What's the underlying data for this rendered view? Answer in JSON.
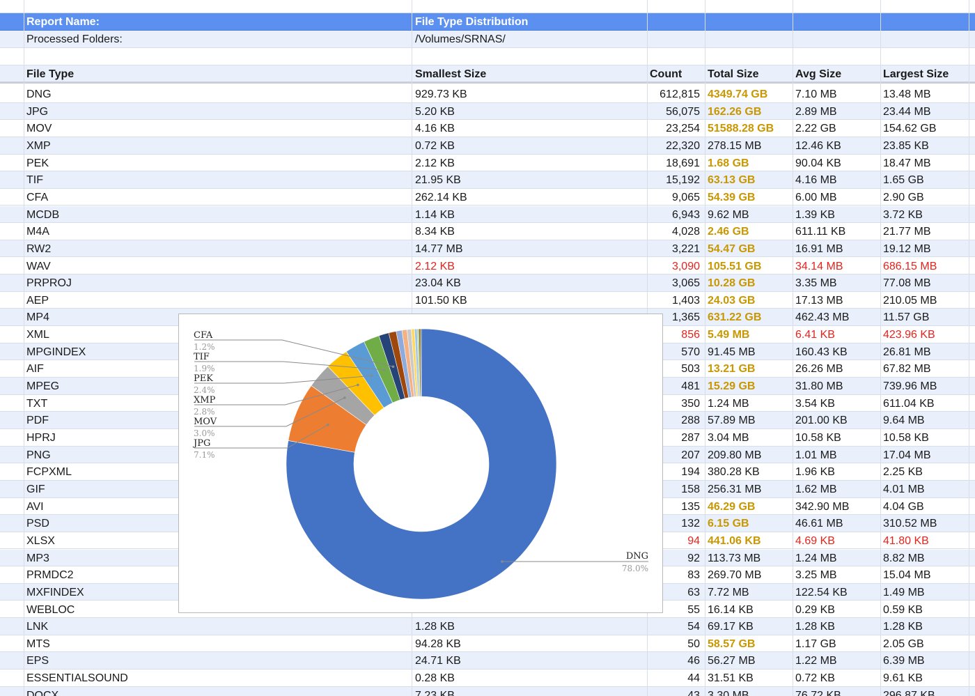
{
  "report": {
    "name_label": "Report Name:",
    "name_value": "File Type Distribution",
    "folders_label": "Processed Folders:",
    "folders_value": "/Volumes/SRNAS/"
  },
  "columns": [
    "File Type",
    "Smallest Size",
    "Count",
    "Total Size",
    "Avg Size",
    "Largest Size"
  ],
  "rows": [
    {
      "type": "DNG",
      "smallest": "929.73 KB",
      "count": "612,815",
      "total": "4349.74 GB",
      "avg": "7.10 MB",
      "largest": "13.48 MB",
      "style": "gold"
    },
    {
      "type": "JPG",
      "smallest": "5.20 KB",
      "count": "56,075",
      "total": "162.26 GB",
      "avg": "2.89 MB",
      "largest": "23.44 MB",
      "style": "gold"
    },
    {
      "type": "MOV",
      "smallest": "4.16 KB",
      "count": "23,254",
      "total": "51588.28 GB",
      "avg": "2.22 GB",
      "largest": "154.62 GB",
      "style": "gold"
    },
    {
      "type": "XMP",
      "smallest": "0.72 KB",
      "count": "22,320",
      "total": "278.15 MB",
      "avg": "12.46 KB",
      "largest": "23.85 KB",
      "style": ""
    },
    {
      "type": "PEK",
      "smallest": "2.12 KB",
      "count": "18,691",
      "total": "1.68 GB",
      "avg": "90.04 KB",
      "largest": "18.47 MB",
      "style": "gold"
    },
    {
      "type": "TIF",
      "smallest": "21.95 KB",
      "count": "15,192",
      "total": "63.13 GB",
      "avg": "4.16 MB",
      "largest": "1.65 GB",
      "style": "gold"
    },
    {
      "type": "CFA",
      "smallest": "262.14 KB",
      "count": "9,065",
      "total": "54.39 GB",
      "avg": "6.00 MB",
      "largest": "2.90 GB",
      "style": "gold"
    },
    {
      "type": "MCDB",
      "smallest": "1.14 KB",
      "count": "6,943",
      "total": "9.62 MB",
      "avg": "1.39 KB",
      "largest": "3.72 KB",
      "style": ""
    },
    {
      "type": "M4A",
      "smallest": "8.34 KB",
      "count": "4,028",
      "total": "2.46 GB",
      "avg": "611.11 KB",
      "largest": "21.77 MB",
      "style": "gold"
    },
    {
      "type": "RW2",
      "smallest": "14.77 MB",
      "count": "3,221",
      "total": "54.47 GB",
      "avg": "16.91 MB",
      "largest": "19.12 MB",
      "style": "gold"
    },
    {
      "type": "WAV",
      "smallest": "2.12 KB",
      "count": "3,090",
      "total": "105.51 GB",
      "avg": "34.14 MB",
      "largest": "686.15 MB",
      "style": "red"
    },
    {
      "type": "PRPROJ",
      "smallest": "23.04 KB",
      "count": "3,065",
      "total": "10.28 GB",
      "avg": "3.35 MB",
      "largest": "77.08 MB",
      "style": "gold"
    },
    {
      "type": "AEP",
      "smallest": "101.50 KB",
      "count": "1,403",
      "total": "24.03 GB",
      "avg": "17.13 MB",
      "largest": "210.05 MB",
      "style": "gold"
    },
    {
      "type": "MP4",
      "smallest": "",
      "count": "1,365",
      "total": "631.22 GB",
      "avg": "462.43 MB",
      "largest": "11.57 GB",
      "style": "gold"
    },
    {
      "type": "XML",
      "smallest": "",
      "count": "856",
      "total": "5.49 MB",
      "avg": "6.41 KB",
      "largest": "423.96 KB",
      "style": "red"
    },
    {
      "type": "MPGINDEX",
      "smallest": "",
      "count": "570",
      "total": "91.45 MB",
      "avg": "160.43 KB",
      "largest": "26.81 MB",
      "style": ""
    },
    {
      "type": "AIF",
      "smallest": "",
      "count": "503",
      "total": "13.21 GB",
      "avg": "26.26 MB",
      "largest": "67.82 MB",
      "style": "gold"
    },
    {
      "type": "MPEG",
      "smallest": "",
      "count": "481",
      "total": "15.29 GB",
      "avg": "31.80 MB",
      "largest": "739.96 MB",
      "style": "gold"
    },
    {
      "type": "TXT",
      "smallest": "",
      "count": "350",
      "total": "1.24 MB",
      "avg": "3.54 KB",
      "largest": "611.04 KB",
      "style": ""
    },
    {
      "type": "PDF",
      "smallest": "",
      "count": "288",
      "total": "57.89 MB",
      "avg": "201.00 KB",
      "largest": "9.64 MB",
      "style": ""
    },
    {
      "type": "HPRJ",
      "smallest": "",
      "count": "287",
      "total": "3.04 MB",
      "avg": "10.58 KB",
      "largest": "10.58 KB",
      "style": ""
    },
    {
      "type": "PNG",
      "smallest": "",
      "count": "207",
      "total": "209.80 MB",
      "avg": "1.01 MB",
      "largest": "17.04 MB",
      "style": ""
    },
    {
      "type": "FCPXML",
      "smallest": "",
      "count": "194",
      "total": "380.28 KB",
      "avg": "1.96 KB",
      "largest": "2.25 KB",
      "style": ""
    },
    {
      "type": "GIF",
      "smallest": "",
      "count": "158",
      "total": "256.31 MB",
      "avg": "1.62 MB",
      "largest": "4.01 MB",
      "style": ""
    },
    {
      "type": "AVI",
      "smallest": "",
      "count": "135",
      "total": "46.29 GB",
      "avg": "342.90 MB",
      "largest": "4.04 GB",
      "style": "gold"
    },
    {
      "type": "PSD",
      "smallest": "",
      "count": "132",
      "total": "6.15 GB",
      "avg": "46.61 MB",
      "largest": "310.52 MB",
      "style": "gold"
    },
    {
      "type": "XLSX",
      "smallest": "",
      "count": "94",
      "total": "441.06 KB",
      "avg": "4.69 KB",
      "largest": "41.80 KB",
      "style": "red"
    },
    {
      "type": "MP3",
      "smallest": "",
      "count": "92",
      "total": "113.73 MB",
      "avg": "1.24 MB",
      "largest": "8.82 MB",
      "style": ""
    },
    {
      "type": "PRMDC2",
      "smallest": "",
      "count": "83",
      "total": "269.70 MB",
      "avg": "3.25 MB",
      "largest": "15.04 MB",
      "style": ""
    },
    {
      "type": "MXFINDEX",
      "smallest": "",
      "count": "63",
      "total": "7.72 MB",
      "avg": "122.54 KB",
      "largest": "1.49 MB",
      "style": ""
    },
    {
      "type": "WEBLOC",
      "smallest": "",
      "count": "55",
      "total": "16.14 KB",
      "avg": "0.29 KB",
      "largest": "0.59 KB",
      "style": ""
    },
    {
      "type": "LNK",
      "smallest": "1.28 KB",
      "count": "54",
      "total": "69.17 KB",
      "avg": "1.28 KB",
      "largest": "1.28 KB",
      "style": ""
    },
    {
      "type": "MTS",
      "smallest": "94.28 KB",
      "count": "50",
      "total": "58.57 GB",
      "avg": "1.17 GB",
      "largest": "2.05 GB",
      "style": "gold"
    },
    {
      "type": "EPS",
      "smallest": "24.71 KB",
      "count": "46",
      "total": "56.27 MB",
      "avg": "1.22 MB",
      "largest": "6.39 MB",
      "style": ""
    },
    {
      "type": "ESSENTIALSOUND",
      "smallest": "0.28 KB",
      "count": "44",
      "total": "31.51 KB",
      "avg": "0.72 KB",
      "largest": "9.61 KB",
      "style": ""
    },
    {
      "type": "DOCX",
      "smallest": "7.23 KB",
      "count": "43",
      "total": "3.30 MB",
      "avg": "76.72 KB",
      "largest": "296.87 KB",
      "style": ""
    }
  ],
  "colors": {
    "header_blue": "#5b8ff0",
    "gold": "#c99700",
    "red": "#e8231c",
    "alt_row": "#e9f0fb"
  },
  "chart_data": {
    "type": "pie",
    "variant": "donut",
    "slices": [
      {
        "label": "DNG",
        "percent": 78.0,
        "pct_label": "78.0%",
        "color": "#4472c4"
      },
      {
        "label": "JPG",
        "percent": 7.1,
        "pct_label": "7.1%",
        "color": "#ed7d31"
      },
      {
        "label": "MOV",
        "percent": 3.0,
        "pct_label": "3.0%",
        "color": "#a5a5a5"
      },
      {
        "label": "XMP",
        "percent": 2.8,
        "pct_label": "2.8%",
        "color": "#ffc000"
      },
      {
        "label": "PEK",
        "percent": 2.4,
        "pct_label": "2.4%",
        "color": "#5b9bd5"
      },
      {
        "label": "TIF",
        "percent": 1.9,
        "pct_label": "1.9%",
        "color": "#70ad47"
      },
      {
        "label": "CFA",
        "percent": 1.2,
        "pct_label": "1.2%",
        "color": "#264478"
      },
      {
        "label": "",
        "percent": 0.9,
        "color": "#9e480e"
      },
      {
        "label": "",
        "percent": 0.7,
        "color": "#8faadc"
      },
      {
        "label": "",
        "percent": 0.6,
        "color": "#f4b183"
      },
      {
        "label": "",
        "percent": 0.5,
        "color": "#c9c9c9"
      },
      {
        "label": "",
        "percent": 0.4,
        "color": "#ffd966"
      },
      {
        "label": "",
        "percent": 0.3,
        "color": "#9dc3e6"
      },
      {
        "label": "",
        "percent": 0.2,
        "color": "#a9d18e"
      },
      {
        "label": "",
        "percent": 0.2,
        "color": "#7f6000"
      },
      {
        "label": "",
        "percent": 0.1,
        "color": "#333f50"
      }
    ],
    "labeled": [
      "CFA",
      "TIF",
      "PEK",
      "XMP",
      "MOV",
      "JPG",
      "DNG"
    ]
  }
}
